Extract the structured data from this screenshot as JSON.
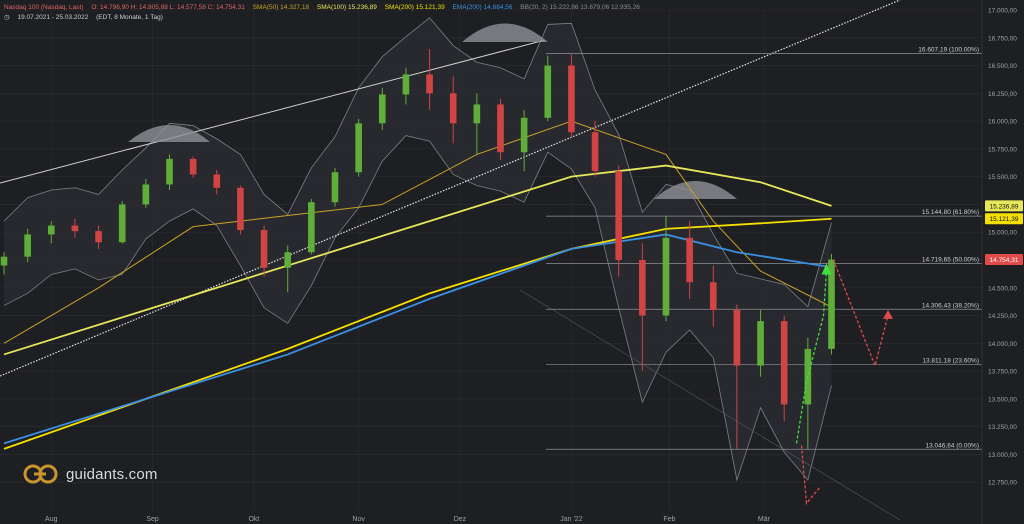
{
  "header": {
    "instrument": "Nasdaq 100 (Nasdaq, Last)",
    "ohlc": "O: 14.796,90  H: 14.805,88  L: 14.577,58  C: 14.754,31",
    "sma50": "SMA(50)  14.327,18",
    "sma100": "SMA(100)  15.236,89",
    "sma200": "SMA(200)  15.121,39",
    "ema200": "EMA(200)  14.684,56",
    "bb": "BB(20, 2)  15.222,86  13.679,06  12.935,26",
    "range": "19.07.2021 - 25.03.2022",
    "period": "(EDT, 8 Monate, 1 Tag)"
  },
  "logo": {
    "text": "guidants.com"
  },
  "colors": {
    "background": "#1e1f23",
    "bull": "#5fae3a",
    "bear": "#d04444",
    "sma50": "#c9a227",
    "sma100": "#e7e75a",
    "sma200": "#f5e000",
    "ema200": "#3b8fe0",
    "bb": "#7c7f86",
    "price_tag": "#e24a4a",
    "fib_line": "#8d9096"
  },
  "chart_data": {
    "type": "candlestick",
    "title": "Nasdaq 100",
    "y_range": [
      12500,
      17000
    ],
    "y_ticks": [
      "17.000,00",
      "16.750,00",
      "16.500,00",
      "16.250,00",
      "16.000,00",
      "15.750,00",
      "15.500,00",
      "15.250,00",
      "15.000,00",
      "14.750,00",
      "14.500,00",
      "14.250,00",
      "14.000,00",
      "13.750,00",
      "13.500,00",
      "13.250,00",
      "13.000,00",
      "12.750,00"
    ],
    "y_tick_values": [
      17000,
      16750,
      16500,
      16250,
      16000,
      15750,
      15500,
      15250,
      15000,
      14750,
      14500,
      14250,
      14000,
      13750,
      13500,
      13250,
      13000,
      12750
    ],
    "x_labels": [
      "Aug",
      "Sep",
      "Okt",
      "Nov",
      "Dez",
      "Jan '22",
      "Feb",
      "Mär"
    ],
    "x_label_dates": [
      "2021-08-02",
      "2021-09-01",
      "2021-10-01",
      "2021-11-01",
      "2021-12-01",
      "2022-01-03",
      "2022-02-01",
      "2022-03-01"
    ],
    "date_range": [
      "2021-07-19",
      "2022-03-25"
    ],
    "fib_levels": [
      {
        "label": "16.607,19 (100.00%)",
        "value": 16607.19
      },
      {
        "label": "15.144,80 (61.80%)",
        "value": 15144.8
      },
      {
        "label": "14.719,65 (50.00%)",
        "value": 14719.65
      },
      {
        "label": "14.306,43 (38.20%)",
        "value": 14306.43
      },
      {
        "label": "13.811,18 (23.60%)",
        "value": 13811.18
      },
      {
        "label": "13.046,64 (0.00%)",
        "value": 13046.64
      }
    ],
    "price_tags": [
      {
        "label": "15.236,89",
        "value": 15236.89,
        "series": "SMA(100)"
      },
      {
        "label": "15.121,39",
        "value": 15121.39,
        "series": "SMA(200)"
      },
      {
        "label": "14.754,31",
        "value": 14754.31,
        "series": "Last"
      }
    ],
    "candles": [
      {
        "d": "2021-07-19",
        "o": 14700,
        "h": 14820,
        "l": 14620,
        "c": 14780
      },
      {
        "d": "2021-07-26",
        "o": 14780,
        "h": 15030,
        "l": 14730,
        "c": 14980
      },
      {
        "d": "2021-08-02",
        "o": 14980,
        "h": 15100,
        "l": 14900,
        "c": 15060
      },
      {
        "d": "2021-08-09",
        "o": 15060,
        "h": 15120,
        "l": 14950,
        "c": 15010
      },
      {
        "d": "2021-08-16",
        "o": 15010,
        "h": 15060,
        "l": 14850,
        "c": 14910
      },
      {
        "d": "2021-08-23",
        "o": 14910,
        "h": 15280,
        "l": 14900,
        "c": 15250
      },
      {
        "d": "2021-08-30",
        "o": 15250,
        "h": 15480,
        "l": 15220,
        "c": 15430
      },
      {
        "d": "2021-09-06",
        "o": 15430,
        "h": 15700,
        "l": 15380,
        "c": 15660
      },
      {
        "d": "2021-09-13",
        "o": 15660,
        "h": 15680,
        "l": 15490,
        "c": 15520
      },
      {
        "d": "2021-09-20",
        "o": 15520,
        "h": 15560,
        "l": 15340,
        "c": 15400
      },
      {
        "d": "2021-09-27",
        "o": 15400,
        "h": 15420,
        "l": 14980,
        "c": 15020
      },
      {
        "d": "2021-10-04",
        "o": 15020,
        "h": 15060,
        "l": 14600,
        "c": 14680
      },
      {
        "d": "2021-10-11",
        "o": 14680,
        "h": 14880,
        "l": 14460,
        "c": 14820
      },
      {
        "d": "2021-10-18",
        "o": 14820,
        "h": 15300,
        "l": 14800,
        "c": 15270
      },
      {
        "d": "2021-10-25",
        "o": 15270,
        "h": 15580,
        "l": 15230,
        "c": 15540
      },
      {
        "d": "2021-11-01",
        "o": 15540,
        "h": 16020,
        "l": 15500,
        "c": 15980
      },
      {
        "d": "2021-11-08",
        "o": 15980,
        "h": 16300,
        "l": 15920,
        "c": 16240
      },
      {
        "d": "2021-11-15",
        "o": 16240,
        "h": 16480,
        "l": 16150,
        "c": 16420
      },
      {
        "d": "2021-11-22",
        "o": 16420,
        "h": 16650,
        "l": 16100,
        "c": 16250
      },
      {
        "d": "2021-11-29",
        "o": 16250,
        "h": 16400,
        "l": 15800,
        "c": 15980
      },
      {
        "d": "2021-12-06",
        "o": 15980,
        "h": 16250,
        "l": 15700,
        "c": 16150
      },
      {
        "d": "2021-12-13",
        "o": 16150,
        "h": 16200,
        "l": 15650,
        "c": 15720
      },
      {
        "d": "2021-12-20",
        "o": 15720,
        "h": 16100,
        "l": 15550,
        "c": 16030
      },
      {
        "d": "2021-12-27",
        "o": 16030,
        "h": 16590,
        "l": 16000,
        "c": 16500
      },
      {
        "d": "2022-01-03",
        "o": 16500,
        "h": 16600,
        "l": 15850,
        "c": 15900
      },
      {
        "d": "2022-01-10",
        "o": 15900,
        "h": 16000,
        "l": 15500,
        "c": 15550
      },
      {
        "d": "2022-01-17",
        "o": 15550,
        "h": 15600,
        "l": 14600,
        "c": 14750
      },
      {
        "d": "2022-01-24",
        "o": 14750,
        "h": 14900,
        "l": 13750,
        "c": 14250
      },
      {
        "d": "2022-01-31",
        "o": 14250,
        "h": 15150,
        "l": 14200,
        "c": 14950
      },
      {
        "d": "2022-02-07",
        "o": 14950,
        "h": 15100,
        "l": 14400,
        "c": 14550
      },
      {
        "d": "2022-02-14",
        "o": 14550,
        "h": 14700,
        "l": 14150,
        "c": 14300
      },
      {
        "d": "2022-02-21",
        "o": 14300,
        "h": 14350,
        "l": 13050,
        "c": 13800
      },
      {
        "d": "2022-02-28",
        "o": 13800,
        "h": 14300,
        "l": 13700,
        "c": 14200
      },
      {
        "d": "2022-03-07",
        "o": 14200,
        "h": 14250,
        "l": 13300,
        "c": 13450
      },
      {
        "d": "2022-03-14",
        "o": 13450,
        "h": 14050,
        "l": 13050,
        "c": 13950
      },
      {
        "d": "2022-03-21",
        "o": 13950,
        "h": 14805,
        "l": 13900,
        "c": 14754
      }
    ],
    "series": [
      {
        "name": "SMA(50)",
        "color": "#c9a227",
        "points": [
          [
            0,
            14000
          ],
          [
            4,
            14500
          ],
          [
            8,
            15050
          ],
          [
            12,
            15150
          ],
          [
            16,
            15250
          ],
          [
            20,
            15700
          ],
          [
            24,
            16000
          ],
          [
            28,
            15700
          ],
          [
            30,
            15100
          ],
          [
            32,
            14650
          ],
          [
            35,
            14327
          ]
        ]
      },
      {
        "name": "SMA(100)",
        "color": "#e7e75a",
        "points": [
          [
            0,
            13900
          ],
          [
            6,
            14300
          ],
          [
            12,
            14700
          ],
          [
            18,
            15100
          ],
          [
            24,
            15500
          ],
          [
            28,
            15600
          ],
          [
            32,
            15450
          ],
          [
            35,
            15237
          ]
        ]
      },
      {
        "name": "SMA(200)",
        "color": "#f5e000",
        "points": [
          [
            0,
            13050
          ],
          [
            6,
            13500
          ],
          [
            12,
            13950
          ],
          [
            18,
            14450
          ],
          [
            24,
            14850
          ],
          [
            28,
            15030
          ],
          [
            32,
            15080
          ],
          [
            35,
            15121
          ]
        ]
      },
      {
        "name": "EMA(200)",
        "color": "#3b8fe0",
        "points": [
          [
            0,
            13100
          ],
          [
            6,
            13500
          ],
          [
            12,
            13900
          ],
          [
            18,
            14400
          ],
          [
            24,
            14850
          ],
          [
            28,
            14980
          ],
          [
            31,
            14820
          ],
          [
            35,
            14685
          ]
        ]
      }
    ]
  }
}
